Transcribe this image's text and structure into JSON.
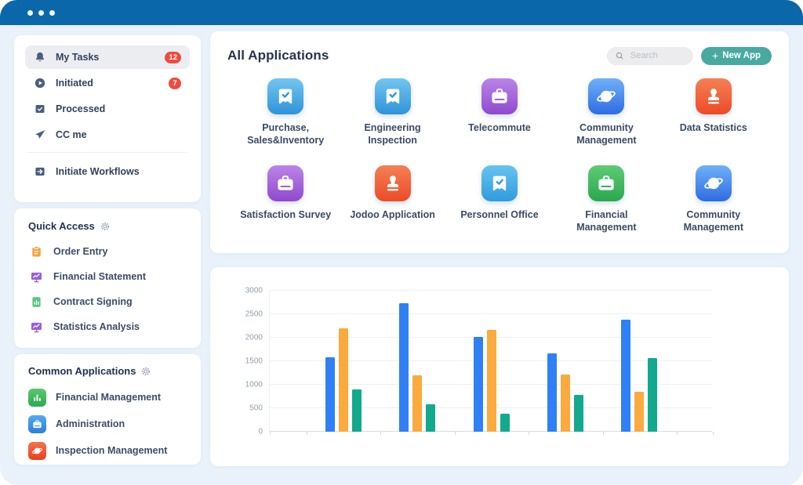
{
  "titlebar": {
    "window_controls_icon": "ellipsis-dots-icon",
    "dots_count": 3
  },
  "colors": {
    "titlebar_blue": "#0a67a9",
    "content_bg": "#e9f1fa",
    "badge_red": "#ee4b3e",
    "new_app_teal": "#48a9a1"
  },
  "sidebar": {
    "tasks": {
      "items": [
        {
          "label": "My Tasks",
          "icon": "bell-icon",
          "badge": "12",
          "active": true
        },
        {
          "label": "Initiated",
          "icon": "play-circle-icon",
          "badge": "7",
          "active": false
        },
        {
          "label": "Processed",
          "icon": "archive-check-icon",
          "badge": "",
          "active": false
        },
        {
          "label": "CC me",
          "icon": "paper-plane-icon",
          "badge": "",
          "active": false
        }
      ],
      "footer": {
        "label": "Initiate Workflows",
        "icon": "workflow-arrow-icon"
      }
    },
    "quick_access": {
      "title": "Quick Access",
      "settings_icon": "gear-icon",
      "items": [
        {
          "label": "Order Entry",
          "icon": "clipboard-icon",
          "color": "#f5a33c"
        },
        {
          "label": "Financial Statement",
          "icon": "monitor-chart-icon",
          "color": "#9a5fe0"
        },
        {
          "label": "Contract Signing",
          "icon": "document-chart-icon",
          "color": "#56c77d"
        },
        {
          "label": "Statistics Analysis",
          "icon": "monitor-chart-icon",
          "color": "#9a5fe0"
        }
      ]
    },
    "common_applications": {
      "title": "Common Applications",
      "settings_icon": "gear-icon",
      "items": [
        {
          "label": "Financial Management",
          "icon": "bar-chart-icon",
          "grad": [
            "#58c96f",
            "#2ca94e"
          ]
        },
        {
          "label": "Administration",
          "icon": "briefcase-icon",
          "grad": [
            "#55aaf2",
            "#2b7fe0"
          ]
        },
        {
          "label": "Inspection Management",
          "icon": "planet-icon",
          "grad": [
            "#f4744c",
            "#ea3f22"
          ]
        }
      ]
    }
  },
  "main": {
    "header": {
      "title": "All Applications",
      "search_icon": "search-icon",
      "search_placeholder": "Search",
      "new_app": {
        "icon": "plus-icon",
        "glyph": "+",
        "label": "New App"
      }
    },
    "apps": [
      {
        "label": "Purchase, Sales&Inventory",
        "icon": "check-ribbon-icon",
        "grad": [
          "#72c6f0",
          "#2f93da"
        ],
        "accent": "#2f93da"
      },
      {
        "label": "Engineering Inspection",
        "icon": "check-ribbon-icon",
        "grad": [
          "#72c6f0",
          "#2f93da"
        ],
        "accent": "#2f93da"
      },
      {
        "label": "Telecommute",
        "icon": "briefcase-icon",
        "grad": [
          "#bb84e8",
          "#9049cf"
        ],
        "accent": "#9a56d6"
      },
      {
        "label": "Community Management",
        "icon": "planet-icon",
        "grad": [
          "#6fb0f9",
          "#2e6ce2"
        ],
        "accent": "#2e6ce2"
      },
      {
        "label": "Data Statistics",
        "icon": "stamp-icon",
        "grad": [
          "#f58055",
          "#ec4b26"
        ],
        "accent": "#ec4b26"
      },
      {
        "label": "Satisfaction Survey",
        "icon": "briefcase-icon",
        "grad": [
          "#bb84e8",
          "#9049cf"
        ],
        "accent": "#9a56d6"
      },
      {
        "label": "Jodoo Application",
        "icon": "stamp-icon",
        "grad": [
          "#f58055",
          "#ec4b26"
        ],
        "accent": "#ec4b26"
      },
      {
        "label": "Personnel Office",
        "icon": "check-ribbon-icon",
        "grad": [
          "#67c3ef",
          "#2f9bdf"
        ],
        "accent": "#2f9bdf"
      },
      {
        "label": "Financial Management",
        "icon": "briefcase-icon",
        "grad": [
          "#5ecb74",
          "#2aa84f"
        ],
        "accent": "#2aa84f"
      },
      {
        "label": "Community Management",
        "icon": "planet-icon",
        "grad": [
          "#6fb0f9",
          "#2e6ce2"
        ],
        "accent": "#2e6ce2"
      }
    ]
  },
  "chart_data": {
    "type": "bar",
    "categories": [
      "",
      "",
      "",
      "",
      ""
    ],
    "series": [
      {
        "name": "series-blue",
        "color": "#2f80f5",
        "values": [
          1580,
          2730,
          2020,
          1670,
          2390
        ]
      },
      {
        "name": "series-orange",
        "color": "#fbaa3e",
        "values": [
          2200,
          1200,
          2170,
          1220,
          850
        ]
      },
      {
        "name": "series-green",
        "color": "#12a98e",
        "values": [
          900,
          590,
          390,
          780,
          1570
        ]
      }
    ],
    "title": "",
    "xlabel": "",
    "ylabel": "",
    "ylim": [
      0,
      3000
    ],
    "yticks": [
      0,
      500,
      1000,
      1500,
      2000,
      2500,
      3000
    ],
    "grid": true,
    "legend": false
  }
}
